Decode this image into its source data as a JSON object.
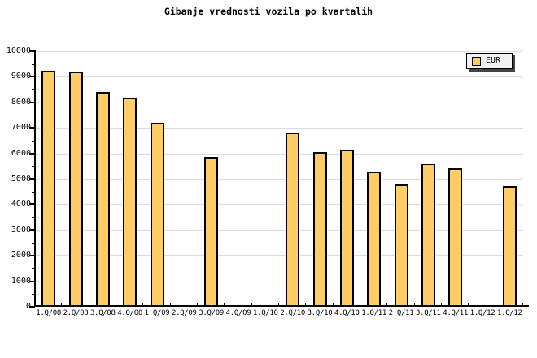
{
  "chart": {
    "title": "Gibanje vrednosti vozila po kvartalih",
    "legend": {
      "label": "EUR"
    }
  },
  "chart_data": {
    "type": "bar",
    "title": "Gibanje vrednosti vozila po kvartalih",
    "categories": [
      "1.Q/08",
      "2.Q/08",
      "3.Q/08",
      "4.Q/08",
      "1.Q/09",
      "2.Q/09",
      "3.Q/09",
      "4.Q/09",
      "1.Q/10",
      "2.Q/10",
      "3.Q/10",
      "4.Q/10",
      "1.Q/11",
      "2.Q/11",
      "3.Q/11",
      "4.Q/11",
      "1.Q/12",
      "1.Q/12"
    ],
    "series": [
      {
        "name": "EUR",
        "values": [
          9250,
          9200,
          8400,
          8200,
          7200,
          null,
          5850,
          null,
          null,
          6800,
          6050,
          6150,
          5300,
          4800,
          5600,
          5400,
          null,
          4700
        ]
      }
    ],
    "xlabel": "",
    "ylabel": "",
    "ylim": [
      0,
      10000
    ],
    "ytick_major": 1000,
    "ytick_minor": 500,
    "grid": true,
    "legend_position": "top-right",
    "colors": {
      "bar_fill": "#FFCC66",
      "bar_border": "#000000",
      "grid": "#DCDCDC",
      "axis": "#000000",
      "background": "#FFFFFF",
      "legend_bg": "#F2F2F2",
      "legend_border": "#000000",
      "legend_shadow": "#444444",
      "text": "#000000"
    }
  }
}
